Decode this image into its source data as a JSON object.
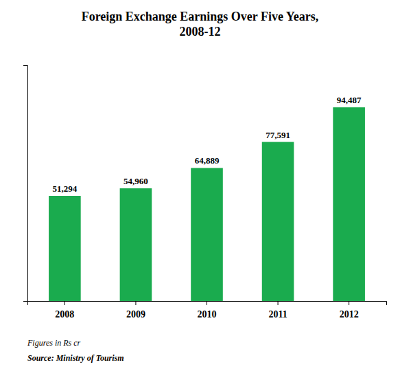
{
  "chart_data": {
    "type": "bar",
    "title": "Foreign Exchange Earnings Over Five Years,\n2008-12",
    "categories": [
      "2008",
      "2009",
      "2010",
      "2011",
      "2012"
    ],
    "values": [
      51294,
      54960,
      64889,
      77591,
      94487
    ],
    "value_labels": [
      "51,294",
      "54,960",
      "64,889",
      "77,591",
      "94,487"
    ],
    "data_labels": true,
    "color": "#1aab4e",
    "ylim": [
      0,
      115000
    ],
    "tick_labels": "x",
    "grid": false,
    "annotations": [
      "Figures in Rs cr",
      "Source: Ministry of Tourism"
    ]
  }
}
